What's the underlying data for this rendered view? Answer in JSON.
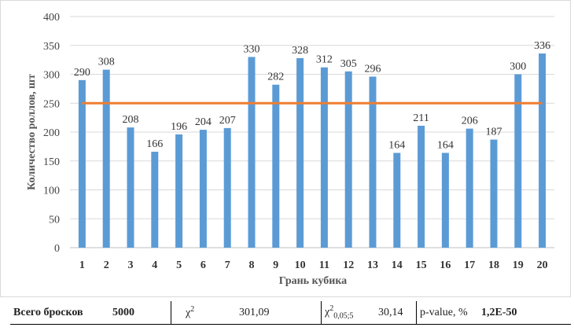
{
  "chart_data": {
    "type": "bar",
    "categories": [
      "1",
      "2",
      "3",
      "4",
      "5",
      "6",
      "7",
      "8",
      "9",
      "10",
      "11",
      "12",
      "13",
      "14",
      "15",
      "16",
      "17",
      "18",
      "19",
      "20"
    ],
    "values": [
      290,
      308,
      208,
      166,
      196,
      204,
      207,
      330,
      282,
      328,
      312,
      305,
      296,
      164,
      211,
      164,
      206,
      187,
      300,
      336
    ],
    "reference_line": 250,
    "xlabel": "Грань кубика",
    "ylabel": "Количество роллов, шт",
    "ylim": [
      0,
      400
    ],
    "yticks": [
      0,
      50,
      100,
      150,
      200,
      250,
      300,
      350,
      400
    ],
    "grid": "horizontal",
    "bar_color": "#5b9bd5",
    "line_color": "#ed7d31"
  },
  "stats": {
    "total_label": "Всего бросков",
    "total_value": "5000",
    "chi_symbol": "χ",
    "chi_sup": "2",
    "chi_value": "301,09",
    "crit_symbol": "χ",
    "crit_sup": "2",
    "crit_sub": "0,05;5",
    "crit_value": "30,14",
    "pvalue_label": "p-value, %",
    "pvalue_value": "1,2E-50"
  }
}
